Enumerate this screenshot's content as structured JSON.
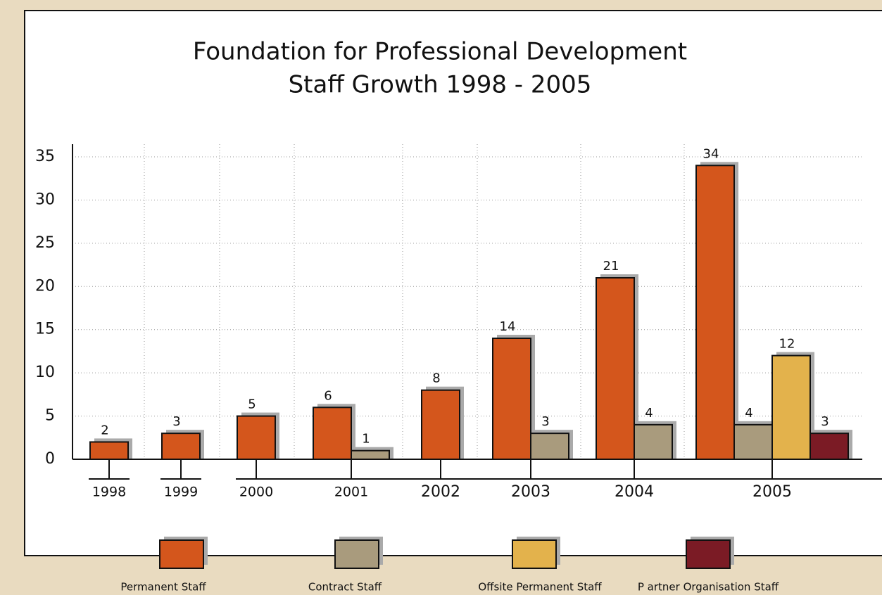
{
  "chart_data": {
    "type": "bar",
    "title": "Foundation for Professional Development",
    "subtitle": "Staff Growth  1998 - 2005",
    "categories": [
      "1998",
      "1999",
      "2000",
      "2001",
      "2002",
      "2003",
      "2004",
      "2005"
    ],
    "series": [
      {
        "name": "Permanent Staff",
        "color": "#d4561c",
        "values": [
          2,
          3,
          5,
          6,
          8,
          14,
          21,
          34
        ]
      },
      {
        "name": "Contract Staff",
        "color": "#a99b7d",
        "values": [
          null,
          null,
          null,
          1,
          null,
          3,
          4,
          4
        ]
      },
      {
        "name": "Offsite Permanent Staff",
        "color": "#e3b24c",
        "values": [
          null,
          null,
          null,
          null,
          null,
          null,
          null,
          12
        ]
      },
      {
        "name": "P artner Organisation Staff",
        "color": "#7b1b25",
        "values": [
          null,
          null,
          null,
          null,
          null,
          null,
          null,
          3
        ]
      }
    ],
    "ylim": [
      0,
      35
    ],
    "yticks": [
      0,
      5,
      10,
      15,
      20,
      25,
      30,
      35
    ],
    "grid": true
  }
}
